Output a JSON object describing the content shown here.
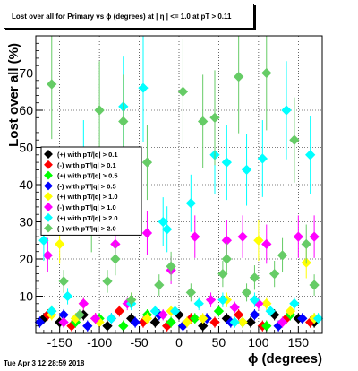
{
  "canvas": {
    "timestamp": "Tue Apr  3 12:28:59 2018"
  },
  "chart_data": {
    "type": "scatter",
    "title": "Lost over all for Primary vs ϕ (degrees) at | η | <= 1.0 at pT > 0.11",
    "xlabel": "ϕ (degrees)",
    "ylabel": "Lost over all (%)",
    "xlim": [
      -180,
      180
    ],
    "ylim": [
      0,
      80
    ],
    "x_ticks": [
      -150,
      -100,
      -50,
      0,
      50,
      100,
      150
    ],
    "y_ticks": [
      10,
      20,
      30,
      40,
      50,
      60,
      70
    ],
    "grid": true,
    "legend_position": "left-middle",
    "series": [
      {
        "name": "(+) with pT/|q| > 0.1",
        "color": "#000000",
        "points": [
          [
            -170,
            4
          ],
          [
            -150,
            3
          ],
          [
            -120,
            5
          ],
          [
            -90,
            2
          ],
          [
            -60,
            4
          ],
          [
            -30,
            3
          ],
          [
            0,
            5
          ],
          [
            30,
            2
          ],
          [
            60,
            4
          ],
          [
            90,
            3
          ],
          [
            120,
            5
          ],
          [
            150,
            4
          ],
          [
            170,
            3
          ]
        ]
      },
      {
        "name": "(-) with pT/|q| > 0.1",
        "color": "#ff0000",
        "points": [
          [
            -165,
            5
          ],
          [
            -135,
            2
          ],
          [
            -105,
            4
          ],
          [
            -75,
            6
          ],
          [
            -45,
            3
          ],
          [
            -15,
            2
          ],
          [
            15,
            4
          ],
          [
            45,
            3
          ],
          [
            75,
            5
          ],
          [
            105,
            2
          ],
          [
            135,
            4
          ],
          [
            165,
            3
          ]
        ]
      },
      {
        "name": "(+) with pT/|q| > 0.5",
        "color": "#00ff00",
        "points": [
          [
            -160,
            6
          ],
          [
            -130,
            3
          ],
          [
            -100,
            4
          ],
          [
            -70,
            2
          ],
          [
            -40,
            5
          ],
          [
            -10,
            3
          ],
          [
            20,
            4
          ],
          [
            50,
            6
          ],
          [
            80,
            3
          ],
          [
            110,
            2
          ],
          [
            140,
            5
          ],
          [
            170,
            4
          ]
        ]
      },
      {
        "name": "(-) with pT/|q| > 0.5",
        "color": "#0000ff",
        "points": [
          [
            -175,
            3
          ],
          [
            -145,
            5
          ],
          [
            -115,
            2
          ],
          [
            -85,
            4
          ],
          [
            -55,
            3
          ],
          [
            -25,
            5
          ],
          [
            5,
            2
          ],
          [
            35,
            4
          ],
          [
            65,
            3
          ],
          [
            95,
            5
          ],
          [
            125,
            2
          ],
          [
            155,
            4
          ]
        ]
      },
      {
        "name": "(+) with pT/|q| > 1.0",
        "color": "#ffff00",
        "points": [
          [
            -160,
            5
          ],
          [
            -150,
            24
          ],
          [
            -130,
            4
          ],
          [
            -120,
            8
          ],
          [
            -100,
            3
          ],
          [
            -60,
            9
          ],
          [
            -40,
            4
          ],
          [
            -10,
            6
          ],
          [
            10,
            3
          ],
          [
            30,
            4
          ],
          [
            60,
            9
          ],
          [
            80,
            3
          ],
          [
            100,
            25
          ],
          [
            110,
            8
          ],
          [
            140,
            6
          ],
          [
            160,
            19
          ],
          [
            170,
            4
          ]
        ]
      },
      {
        "name": "(-) with pT/|q| > 1.0",
        "color": "#ff00ff",
        "points": [
          [
            -165,
            21
          ],
          [
            -145,
            3
          ],
          [
            -120,
            8
          ],
          [
            -105,
            4
          ],
          [
            -80,
            24
          ],
          [
            -65,
            8
          ],
          [
            -40,
            27
          ],
          [
            -20,
            5
          ],
          [
            -10,
            17
          ],
          [
            20,
            26
          ],
          [
            40,
            9
          ],
          [
            60,
            25
          ],
          [
            70,
            7
          ],
          [
            80,
            26
          ],
          [
            100,
            8
          ],
          [
            110,
            24
          ],
          [
            130,
            3
          ],
          [
            150,
            26
          ],
          [
            170,
            26
          ]
        ]
      },
      {
        "name": "(+) with pT/|q| > 2.0",
        "color": "#00ffff",
        "points": [
          [
            -170,
            25
          ],
          [
            -160,
            6
          ],
          [
            -140,
            10
          ],
          [
            -120,
            47
          ],
          [
            -100,
            38
          ],
          [
            -85,
            4
          ],
          [
            -70,
            61
          ],
          [
            -60,
            8
          ],
          [
            -45,
            66
          ],
          [
            -30,
            6
          ],
          [
            -20,
            30
          ],
          [
            -15,
            28
          ],
          [
            -5,
            6
          ],
          [
            15,
            35
          ],
          [
            25,
            8
          ],
          [
            45,
            48
          ],
          [
            55,
            9
          ],
          [
            60,
            46
          ],
          [
            70,
            3
          ],
          [
            85,
            44
          ],
          [
            95,
            9
          ],
          [
            105,
            47
          ],
          [
            115,
            6
          ],
          [
            135,
            60
          ],
          [
            145,
            8
          ],
          [
            165,
            48
          ],
          [
            175,
            4
          ]
        ]
      },
      {
        "name": "(-) with pT/|q| > 2.0",
        "color": "#66cc66",
        "points": [
          [
            -160,
            67
          ],
          [
            -145,
            14
          ],
          [
            -125,
            5
          ],
          [
            -110,
            28
          ],
          [
            -100,
            60
          ],
          [
            -90,
            14
          ],
          [
            -80,
            20
          ],
          [
            -70,
            57
          ],
          [
            -60,
            9
          ],
          [
            -40,
            46
          ],
          [
            -25,
            13
          ],
          [
            -10,
            18
          ],
          [
            5,
            65
          ],
          [
            15,
            11
          ],
          [
            30,
            57
          ],
          [
            45,
            58
          ],
          [
            55,
            16
          ],
          [
            60,
            20
          ],
          [
            75,
            69
          ],
          [
            85,
            11
          ],
          [
            95,
            15
          ],
          [
            110,
            70
          ],
          [
            120,
            16
          ],
          [
            130,
            21
          ],
          [
            145,
            52
          ],
          [
            160,
            24
          ],
          [
            170,
            13
          ]
        ]
      }
    ]
  }
}
